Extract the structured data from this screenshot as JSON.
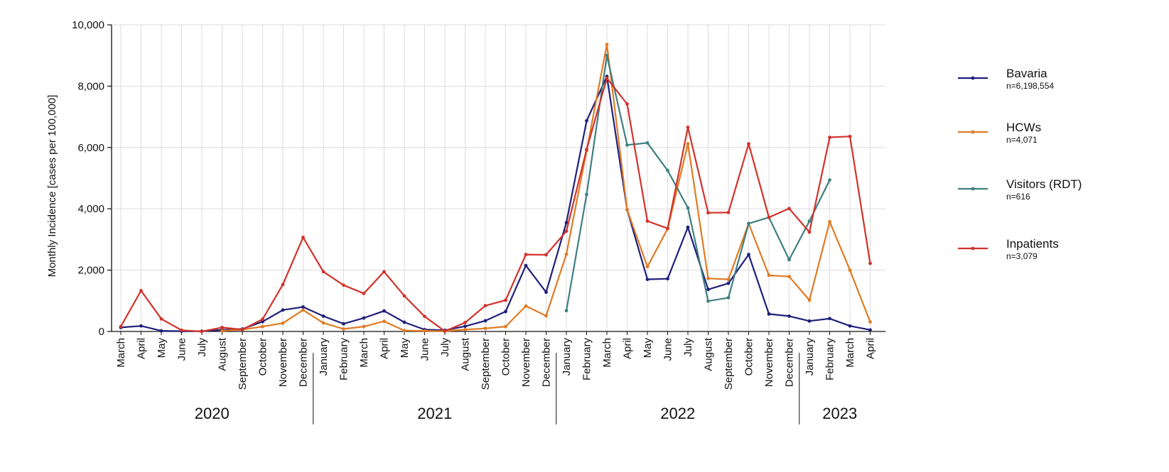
{
  "chart_data": {
    "type": "line",
    "title": "",
    "xlabel": "",
    "ylabel": "Monthly Incidence [cases per 100,000]",
    "ylim": [
      0,
      10000
    ],
    "yticks": [
      0,
      2000,
      4000,
      6000,
      8000,
      10000
    ],
    "ytick_labels": [
      "0",
      "2,000",
      "4,000",
      "6,000",
      "8,000",
      "10,000"
    ],
    "grid": true,
    "legend_position": "right",
    "categories": [
      "March",
      "April",
      "May",
      "June",
      "July",
      "August",
      "September",
      "October",
      "November",
      "December",
      "January",
      "February",
      "March",
      "April",
      "May",
      "June",
      "July",
      "August",
      "September",
      "October",
      "November",
      "December",
      "January",
      "February",
      "March",
      "April",
      "May",
      "June",
      "July",
      "August",
      "September",
      "October",
      "November",
      "December",
      "January",
      "February",
      "March",
      "April"
    ],
    "year_groups": [
      {
        "label": "2020",
        "start": 0,
        "end": 9
      },
      {
        "label": "2021",
        "start": 10,
        "end": 21
      },
      {
        "label": "2022",
        "start": 22,
        "end": 33
      },
      {
        "label": "2023",
        "start": 34,
        "end": 37
      }
    ],
    "series": [
      {
        "name": "Bavaria",
        "n": "n=6,198,554",
        "color": "#1f1f7a",
        "values": [
          130,
          180,
          20,
          10,
          10,
          50,
          80,
          320,
          700,
          800,
          500,
          250,
          440,
          670,
          300,
          60,
          40,
          170,
          350,
          650,
          2150,
          1280,
          3550,
          6870,
          8320,
          3970,
          1700,
          1720,
          3400,
          1370,
          1570,
          2510,
          570,
          500,
          340,
          420,
          180,
          50
        ]
      },
      {
        "name": "HCWs",
        "n": "n=4,071",
        "color": "#e07b24",
        "values": [
          null,
          null,
          null,
          null,
          null,
          20,
          60,
          160,
          270,
          700,
          280,
          80,
          160,
          330,
          30,
          20,
          10,
          60,
          100,
          160,
          830,
          510,
          2520,
          5900,
          9360,
          3970,
          2110,
          3350,
          6120,
          1730,
          1700,
          3520,
          1830,
          1790,
          1020,
          3580,
          2000,
          310
        ]
      },
      {
        "name": "Visitors (RDT)",
        "n": "n=616",
        "color": "#3f7f80",
        "values": [
          null,
          null,
          null,
          null,
          null,
          null,
          null,
          null,
          null,
          null,
          null,
          null,
          null,
          null,
          null,
          null,
          null,
          null,
          null,
          null,
          null,
          null,
          680,
          4470,
          9000,
          6080,
          6150,
          5250,
          4030,
          990,
          1100,
          3520,
          3720,
          2340,
          3600,
          4940,
          null,
          null
        ]
      },
      {
        "name": "Inpatients",
        "n": "n=3,079",
        "color": "#d2322b",
        "values": [
          160,
          1330,
          410,
          40,
          0,
          130,
          60,
          400,
          1530,
          3070,
          1950,
          1510,
          1240,
          1950,
          1160,
          490,
          10,
          290,
          840,
          1020,
          2510,
          2500,
          3270,
          5940,
          8260,
          7420,
          3600,
          3360,
          6660,
          3870,
          3880,
          6120,
          3720,
          4010,
          3240,
          6330,
          6360,
          2220
        ]
      }
    ]
  }
}
